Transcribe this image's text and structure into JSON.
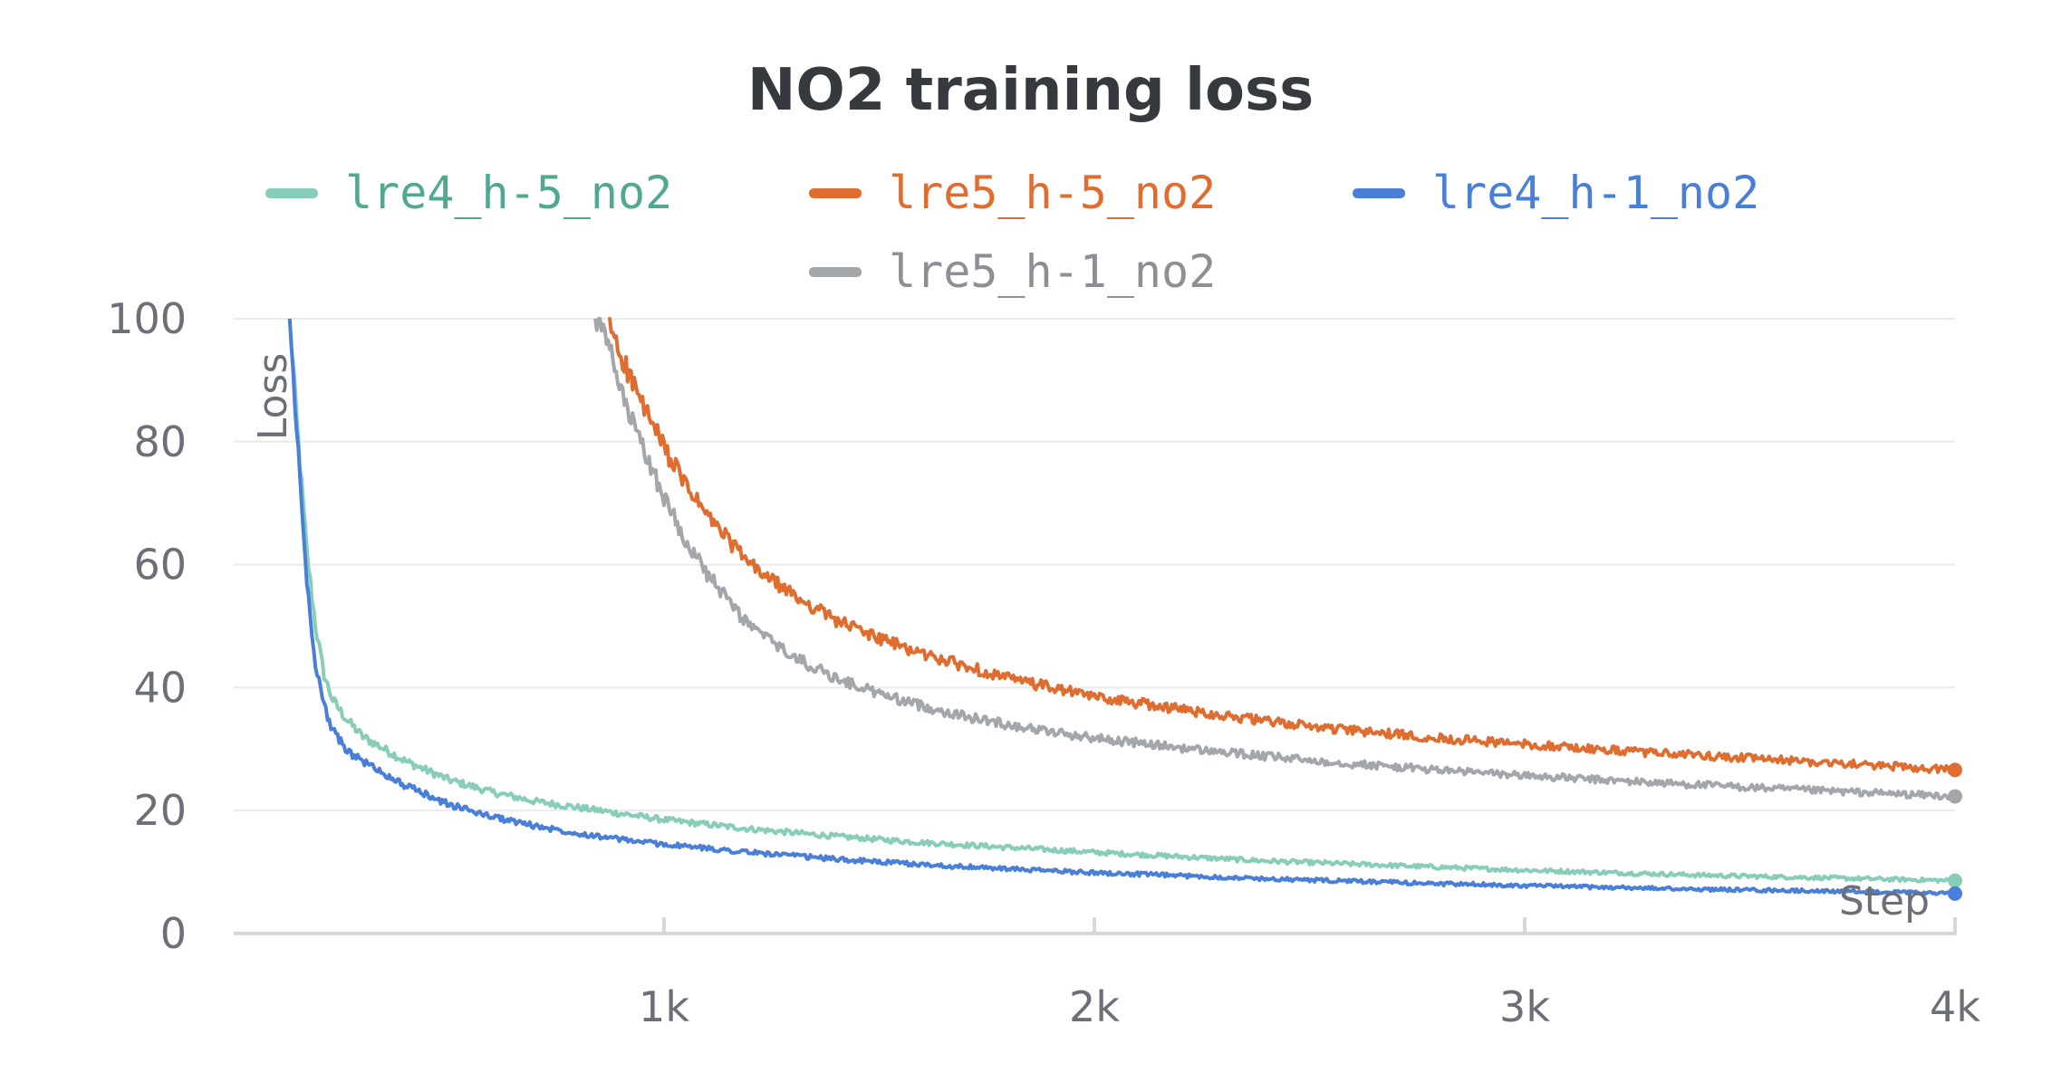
{
  "chart_data": {
    "type": "line",
    "title": "NO2 training loss",
    "xlabel": "Step",
    "ylabel": "Loss",
    "xlim": [
      0,
      4000
    ],
    "ylim": [
      0,
      100
    ],
    "x_ticks": [
      {
        "value": 1000,
        "label": "1k"
      },
      {
        "value": 2000,
        "label": "2k"
      },
      {
        "value": 3000,
        "label": "3k"
      },
      {
        "value": 4000,
        "label": "4k"
      }
    ],
    "y_ticks": [
      {
        "value": 0,
        "label": "0"
      },
      {
        "value": 20,
        "label": "20"
      },
      {
        "value": 40,
        "label": "40"
      },
      {
        "value": 60,
        "label": "60"
      },
      {
        "value": 80,
        "label": "80"
      },
      {
        "value": 100,
        "label": "100"
      }
    ],
    "grid": "horizontal",
    "legend_position": "top",
    "series": [
      {
        "name": "lre4_h-5_no2",
        "color": "#87cdb9",
        "label_color": "#4fa88f",
        "x": [
          130,
          150,
          170,
          190,
          210,
          230,
          260,
          300,
          350,
          400,
          450,
          500,
          600,
          700,
          800,
          900,
          1000,
          1200,
          1400,
          1600,
          1800,
          2000,
          2200,
          2400,
          2600,
          2800,
          3000,
          3200,
          3400,
          3600,
          3800,
          4000
        ],
        "y": [
          100,
          80,
          62,
          50,
          42,
          38,
          35,
          32,
          30,
          28,
          26.5,
          25,
          23,
          21.5,
          20.5,
          19.5,
          18.5,
          17,
          15.8,
          14.8,
          14,
          13.2,
          12.5,
          11.8,
          11.3,
          10.8,
          10.3,
          9.9,
          9.5,
          9.2,
          8.9,
          8.6
        ]
      },
      {
        "name": "lre5_h-5_no2",
        "color": "#e06d30",
        "label_color": "#e06d30",
        "x": [
          870,
          900,
          950,
          1000,
          1050,
          1100,
          1150,
          1200,
          1300,
          1400,
          1500,
          1600,
          1700,
          1800,
          1900,
          2000,
          2200,
          2400,
          2600,
          2800,
          3000,
          3200,
          3400,
          3600,
          3800,
          4000
        ],
        "y": [
          100,
          94,
          86,
          79,
          73,
          68,
          64,
          60,
          55,
          51,
          48,
          45.5,
          43.5,
          41.5,
          40,
          38.5,
          36.5,
          34.5,
          33,
          31.8,
          30.8,
          29.8,
          29,
          28.2,
          27.4,
          26.6
        ]
      },
      {
        "name": "lre4_h-1_no2",
        "color": "#4a7fd8",
        "label_color": "#4a7fd8",
        "x": [
          130,
          150,
          170,
          190,
          210,
          230,
          260,
          300,
          350,
          400,
          450,
          500,
          600,
          700,
          800,
          900,
          1000,
          1200,
          1400,
          1600,
          1800,
          2000,
          2200,
          2400,
          2600,
          2800,
          3000,
          3200,
          3400,
          3600,
          3800,
          4000
        ],
        "y": [
          100,
          78,
          57,
          44,
          37,
          33,
          30,
          28,
          26,
          24,
          22.5,
          21,
          19,
          17.5,
          16.3,
          15.3,
          14.5,
          13.2,
          12.1,
          11.2,
          10.5,
          9.9,
          9.4,
          8.9,
          8.5,
          8.1,
          7.8,
          7.5,
          7.2,
          7,
          6.8,
          6.5
        ]
      },
      {
        "name": "lre5_h-1_no2",
        "color": "#a3a6ab",
        "label_color": "#8c8f95",
        "x": [
          840,
          870,
          900,
          950,
          1000,
          1050,
          1100,
          1150,
          1200,
          1300,
          1400,
          1500,
          1600,
          1700,
          1800,
          1900,
          2000,
          2200,
          2400,
          2600,
          2800,
          3000,
          3200,
          3400,
          3600,
          3800,
          4000
        ],
        "y": [
          100,
          96,
          88,
          79,
          71,
          64,
          58.5,
          54,
          50,
          45,
          41.5,
          39,
          37,
          35.3,
          34,
          32.8,
          31.8,
          30.2,
          28.8,
          27.6,
          26.6,
          25.7,
          24.9,
          24.2,
          23.5,
          22.9,
          22.3
        ]
      }
    ]
  }
}
